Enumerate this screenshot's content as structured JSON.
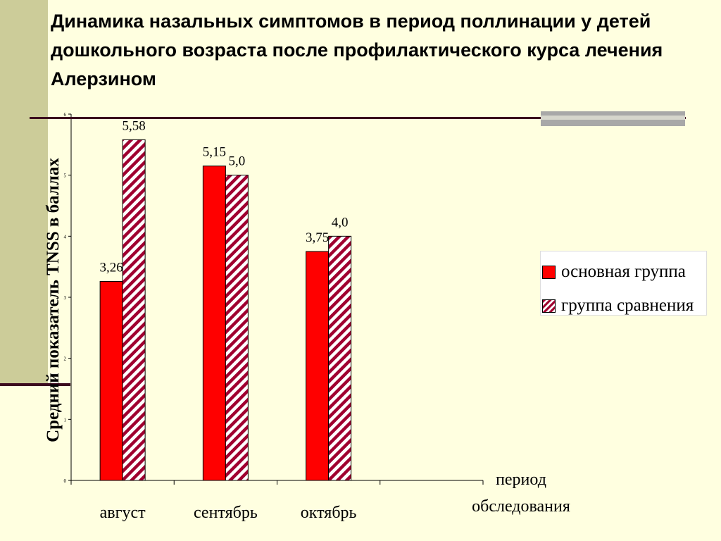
{
  "title": "Динамика назальных симптомов в период поллинации у детей дошкольного возраста после профилактического курса лечения Алерзином",
  "chart_data": {
    "type": "bar",
    "categories": [
      "август",
      "сентябрь",
      "октябрь",
      ""
    ],
    "series": [
      {
        "name": "основная группа",
        "values": [
          3.26,
          5.15,
          3.75,
          null
        ],
        "labels": [
          "3,26",
          "5,15",
          "3,75",
          ""
        ],
        "color": "#FF0000"
      },
      {
        "name": "группа сравнения",
        "values": [
          5.58,
          5.0,
          4.0,
          null
        ],
        "labels": [
          "5,58",
          "5,0",
          "4,0",
          ""
        ],
        "color": "#A00030"
      }
    ],
    "ylabel": "Средний показатель TNSS в баллах",
    "xlabel_line1": "период",
    "xlabel_line2": "обследования",
    "ylim": [
      0,
      6
    ],
    "yticks": [
      "0",
      "1",
      "2",
      "3",
      "4",
      "5",
      "6"
    ],
    "legend_position": "right",
    "grid": false
  }
}
